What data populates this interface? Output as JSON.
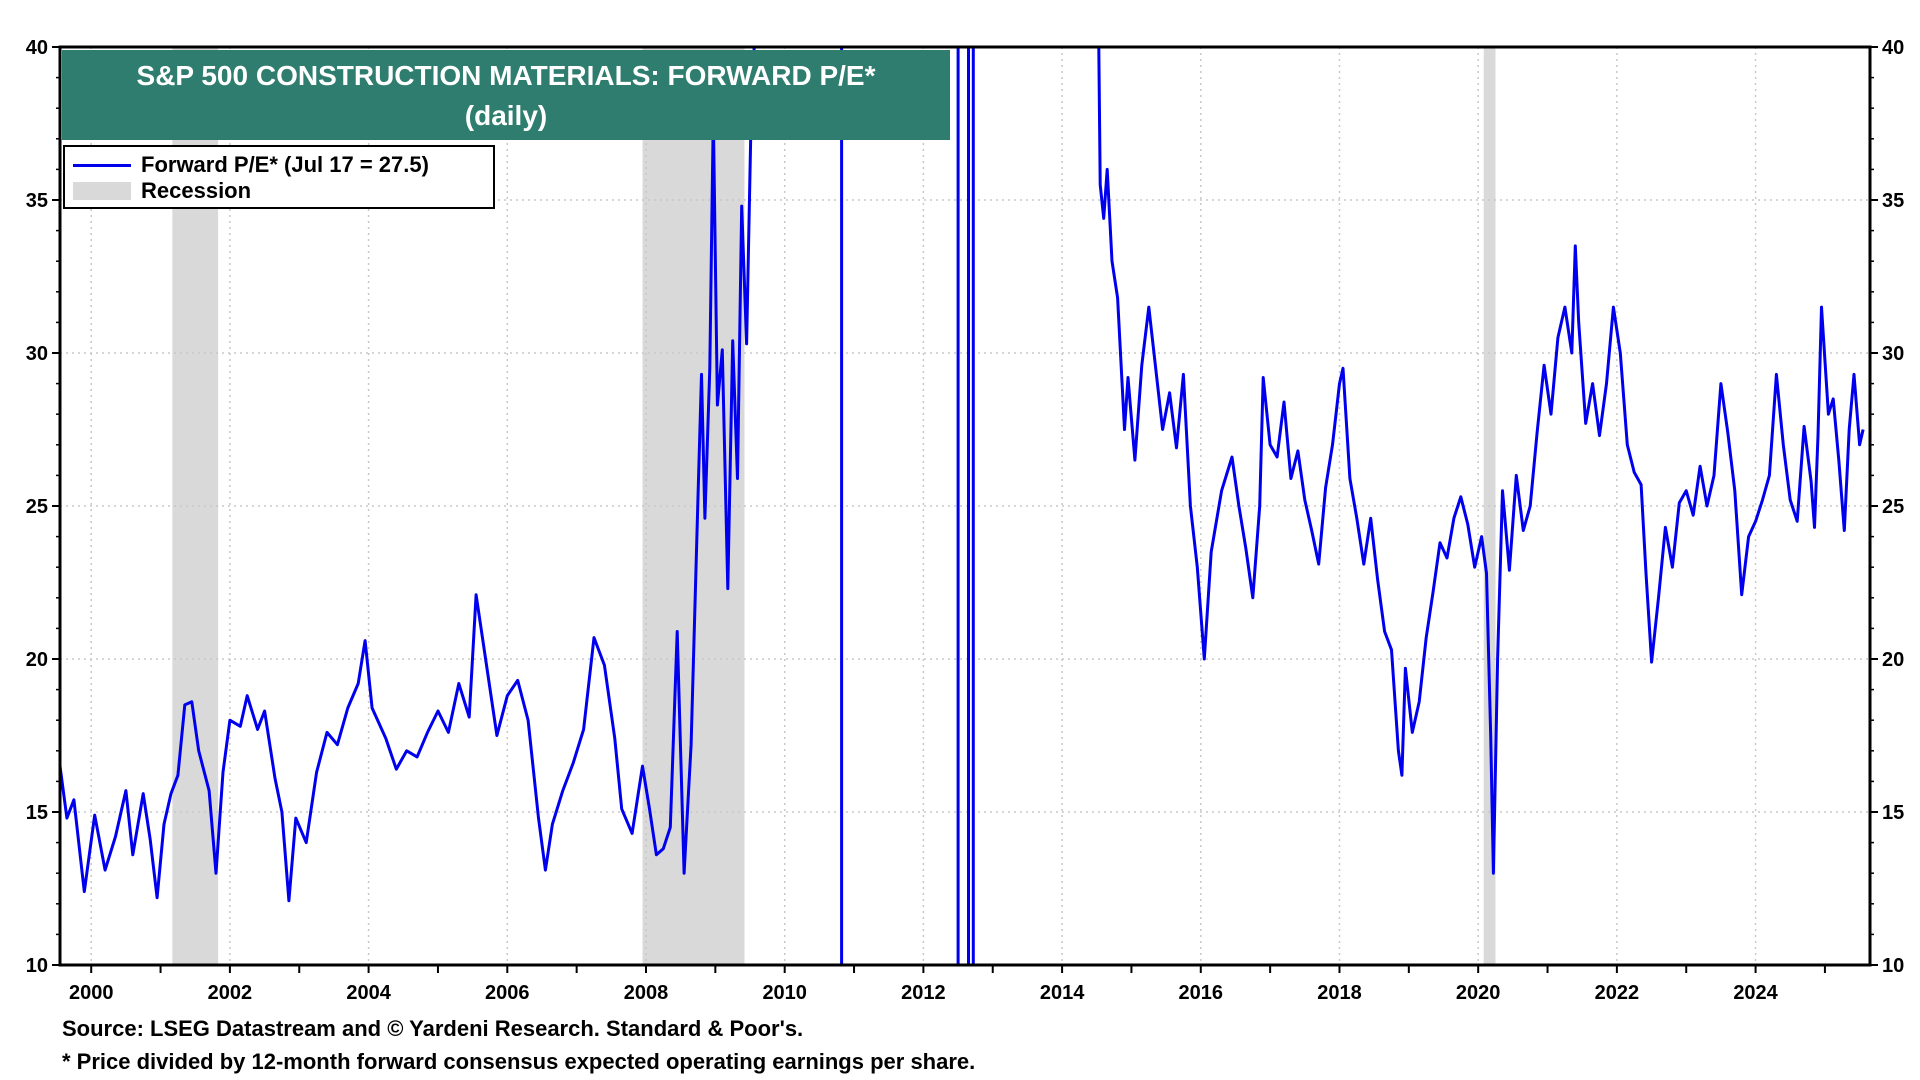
{
  "chart_data": {
    "type": "line",
    "title": "S&P 500 CONSTRUCTION MATERIALS: FORWARD P/E*",
    "subtitle": "(daily)",
    "xlabel": "",
    "ylabel": "",
    "xlim": [
      1999.55,
      2025.65
    ],
    "ylim": [
      10,
      40
    ],
    "x_ticks": [
      "2000",
      "2002",
      "2004",
      "2006",
      "2008",
      "2010",
      "2012",
      "2014",
      "2016",
      "2018",
      "2020",
      "2022",
      "2024"
    ],
    "y_ticks": [
      "10",
      "15",
      "20",
      "25",
      "30",
      "35",
      "40"
    ],
    "grid": true,
    "legend_position": "top-left",
    "legend": {
      "series_label": "Forward P/E* (Jul 17 = 27.5)",
      "recession_label": "Recession"
    },
    "recessions": [
      [
        2001.17,
        2001.83
      ],
      [
        2007.95,
        2009.42
      ],
      [
        2020.08,
        2020.25
      ]
    ],
    "series": [
      {
        "name": "Forward P/E* (Jul 17 = 27.5)",
        "color": "#0000ee",
        "segments": [
          [
            [
              1999.55,
              16.5
            ],
            [
              1999.65,
              14.8
            ],
            [
              1999.75,
              15.4
            ],
            [
              1999.9,
              12.4
            ],
            [
              2000.05,
              14.9
            ],
            [
              2000.2,
              13.1
            ],
            [
              2000.35,
              14.2
            ],
            [
              2000.5,
              15.7
            ],
            [
              2000.6,
              13.6
            ],
            [
              2000.75,
              15.6
            ],
            [
              2000.85,
              14.1
            ],
            [
              2000.95,
              12.2
            ],
            [
              2001.05,
              14.6
            ],
            [
              2001.15,
              15.6
            ],
            [
              2001.25,
              16.2
            ],
            [
              2001.35,
              18.5
            ],
            [
              2001.45,
              18.6
            ],
            [
              2001.55,
              17.0
            ],
            [
              2001.7,
              15.7
            ],
            [
              2001.8,
              13.0
            ],
            [
              2001.9,
              16.3
            ],
            [
              2002.0,
              18.0
            ],
            [
              2002.15,
              17.8
            ],
            [
              2002.25,
              18.8
            ],
            [
              2002.4,
              17.7
            ],
            [
              2002.5,
              18.3
            ],
            [
              2002.65,
              16.1
            ],
            [
              2002.75,
              15.0
            ],
            [
              2002.85,
              12.1
            ],
            [
              2002.95,
              14.8
            ],
            [
              2003.1,
              14.0
            ],
            [
              2003.25,
              16.3
            ],
            [
              2003.4,
              17.6
            ],
            [
              2003.55,
              17.2
            ],
            [
              2003.7,
              18.4
            ],
            [
              2003.85,
              19.2
            ],
            [
              2003.95,
              20.6
            ],
            [
              2004.05,
              18.4
            ],
            [
              2004.25,
              17.4
            ],
            [
              2004.4,
              16.4
            ],
            [
              2004.55,
              17.0
            ],
            [
              2004.7,
              16.8
            ],
            [
              2004.85,
              17.6
            ],
            [
              2005.0,
              18.3
            ],
            [
              2005.15,
              17.6
            ],
            [
              2005.3,
              19.2
            ],
            [
              2005.45,
              18.1
            ],
            [
              2005.55,
              22.1
            ],
            [
              2005.7,
              19.8
            ],
            [
              2005.85,
              17.5
            ],
            [
              2006.0,
              18.8
            ],
            [
              2006.15,
              19.3
            ],
            [
              2006.3,
              18.0
            ],
            [
              2006.45,
              14.8
            ],
            [
              2006.55,
              13.1
            ],
            [
              2006.65,
              14.6
            ],
            [
              2006.8,
              15.7
            ],
            [
              2006.95,
              16.6
            ],
            [
              2007.1,
              17.7
            ],
            [
              2007.25,
              20.7
            ],
            [
              2007.4,
              19.8
            ],
            [
              2007.55,
              17.4
            ],
            [
              2007.65,
              15.1
            ],
            [
              2007.8,
              14.3
            ],
            [
              2007.95,
              16.5
            ],
            [
              2008.05,
              15.1
            ],
            [
              2008.15,
              13.6
            ],
            [
              2008.25,
              13.8
            ],
            [
              2008.35,
              14.5
            ],
            [
              2008.45,
              20.9
            ],
            [
              2008.55,
              13.0
            ],
            [
              2008.65,
              17.2
            ],
            [
              2008.75,
              25.3
            ],
            [
              2008.8,
              29.3
            ],
            [
              2008.85,
              24.6
            ],
            [
              2008.92,
              29.5
            ],
            [
              2008.97,
              37.8
            ],
            [
              2009.03,
              28.3
            ],
            [
              2009.1,
              30.1
            ],
            [
              2009.18,
              22.3
            ],
            [
              2009.25,
              30.4
            ],
            [
              2009.32,
              25.9
            ],
            [
              2009.38,
              34.8
            ],
            [
              2009.45,
              30.3
            ],
            [
              2009.52,
              38.2
            ],
            [
              2009.56,
              40.0
            ]
          ],
          [
            [
              2010.82,
              10.0
            ],
            [
              2010.82,
              40.0
            ]
          ],
          [
            [
              2012.5,
              10.0
            ],
            [
              2012.5,
              40.0
            ]
          ],
          [
            [
              2012.65,
              10.0
            ],
            [
              2012.65,
              40.0
            ]
          ],
          [
            [
              2012.72,
              10.0
            ],
            [
              2012.72,
              40.0
            ]
          ],
          [
            [
              2014.53,
              40.0
            ],
            [
              2014.55,
              35.5
            ],
            [
              2014.6,
              34.4
            ],
            [
              2014.65,
              36.0
            ],
            [
              2014.72,
              33.0
            ],
            [
              2014.8,
              31.8
            ],
            [
              2014.9,
              27.5
            ],
            [
              2014.95,
              29.2
            ],
            [
              2015.05,
              26.5
            ],
            [
              2015.15,
              29.6
            ],
            [
              2015.25,
              31.5
            ],
            [
              2015.35,
              29.5
            ],
            [
              2015.45,
              27.5
            ],
            [
              2015.55,
              28.7
            ],
            [
              2015.65,
              26.9
            ],
            [
              2015.75,
              29.3
            ],
            [
              2015.85,
              25.0
            ],
            [
              2015.95,
              23.0
            ],
            [
              2016.05,
              20.0
            ],
            [
              2016.15,
              23.5
            ],
            [
              2016.3,
              25.5
            ],
            [
              2016.45,
              26.6
            ],
            [
              2016.55,
              25.0
            ],
            [
              2016.65,
              23.6
            ],
            [
              2016.75,
              22.0
            ],
            [
              2016.85,
              25.0
            ],
            [
              2016.9,
              29.2
            ],
            [
              2017.0,
              27.0
            ],
            [
              2017.1,
              26.6
            ],
            [
              2017.2,
              28.4
            ],
            [
              2017.3,
              25.9
            ],
            [
              2017.4,
              26.8
            ],
            [
              2017.5,
              25.2
            ],
            [
              2017.6,
              24.2
            ],
            [
              2017.7,
              23.1
            ],
            [
              2017.8,
              25.6
            ],
            [
              2017.9,
              27.0
            ],
            [
              2018.0,
              29.0
            ],
            [
              2018.05,
              29.5
            ],
            [
              2018.15,
              25.9
            ],
            [
              2018.25,
              24.6
            ],
            [
              2018.35,
              23.1
            ],
            [
              2018.45,
              24.6
            ],
            [
              2018.55,
              22.6
            ],
            [
              2018.65,
              20.9
            ],
            [
              2018.75,
              20.3
            ],
            [
              2018.85,
              17.0
            ],
            [
              2018.9,
              16.2
            ],
            [
              2018.95,
              19.7
            ],
            [
              2019.05,
              17.6
            ],
            [
              2019.15,
              18.6
            ],
            [
              2019.25,
              20.7
            ],
            [
              2019.35,
              22.2
            ],
            [
              2019.45,
              23.8
            ],
            [
              2019.55,
              23.3
            ],
            [
              2019.65,
              24.6
            ],
            [
              2019.75,
              25.3
            ],
            [
              2019.85,
              24.4
            ],
            [
              2019.95,
              23.0
            ],
            [
              2020.05,
              24.0
            ],
            [
              2020.12,
              22.8
            ],
            [
              2020.18,
              17.5
            ],
            [
              2020.22,
              13.0
            ],
            [
              2020.28,
              20.0
            ],
            [
              2020.35,
              25.5
            ],
            [
              2020.45,
              22.9
            ],
            [
              2020.55,
              26.0
            ],
            [
              2020.65,
              24.2
            ],
            [
              2020.75,
              25.0
            ],
            [
              2020.85,
              27.4
            ],
            [
              2020.95,
              29.6
            ],
            [
              2021.05,
              28.0
            ],
            [
              2021.15,
              30.5
            ],
            [
              2021.25,
              31.5
            ],
            [
              2021.35,
              30.0
            ],
            [
              2021.4,
              33.5
            ],
            [
              2021.45,
              31.0
            ],
            [
              2021.55,
              27.7
            ],
            [
              2021.65,
              29.0
            ],
            [
              2021.75,
              27.3
            ],
            [
              2021.85,
              29.0
            ],
            [
              2021.95,
              31.5
            ],
            [
              2022.05,
              30.0
            ],
            [
              2022.15,
              27.0
            ],
            [
              2022.25,
              26.1
            ],
            [
              2022.35,
              25.7
            ],
            [
              2022.42,
              22.8
            ],
            [
              2022.5,
              19.9
            ],
            [
              2022.6,
              22.0
            ],
            [
              2022.7,
              24.3
            ],
            [
              2022.8,
              23.0
            ],
            [
              2022.9,
              25.1
            ],
            [
              2023.0,
              25.5
            ],
            [
              2023.1,
              24.7
            ],
            [
              2023.2,
              26.3
            ],
            [
              2023.3,
              25.0
            ],
            [
              2023.4,
              26.0
            ],
            [
              2023.5,
              29.0
            ],
            [
              2023.6,
              27.4
            ],
            [
              2023.7,
              25.5
            ],
            [
              2023.8,
              22.1
            ],
            [
              2023.9,
              24.0
            ],
            [
              2024.0,
              24.5
            ],
            [
              2024.1,
              25.2
            ],
            [
              2024.2,
              26.0
            ],
            [
              2024.3,
              29.3
            ],
            [
              2024.4,
              27.0
            ],
            [
              2024.5,
              25.2
            ],
            [
              2024.6,
              24.5
            ],
            [
              2024.7,
              27.6
            ],
            [
              2024.8,
              25.8
            ],
            [
              2024.85,
              24.3
            ],
            [
              2024.9,
              27.3
            ],
            [
              2024.95,
              31.5
            ],
            [
              2025.05,
              28.0
            ],
            [
              2025.12,
              28.5
            ],
            [
              2025.2,
              26.5
            ],
            [
              2025.28,
              24.2
            ],
            [
              2025.35,
              27.5
            ],
            [
              2025.42,
              29.3
            ],
            [
              2025.5,
              27.0
            ],
            [
              2025.55,
              27.5
            ]
          ]
        ]
      }
    ]
  },
  "footnotes": {
    "source": "Source: LSEG Datastream and © Yardeni Research. Standard & Poor's.",
    "note": "* Price divided by 12-month forward consensus expected operating earnings per share."
  }
}
